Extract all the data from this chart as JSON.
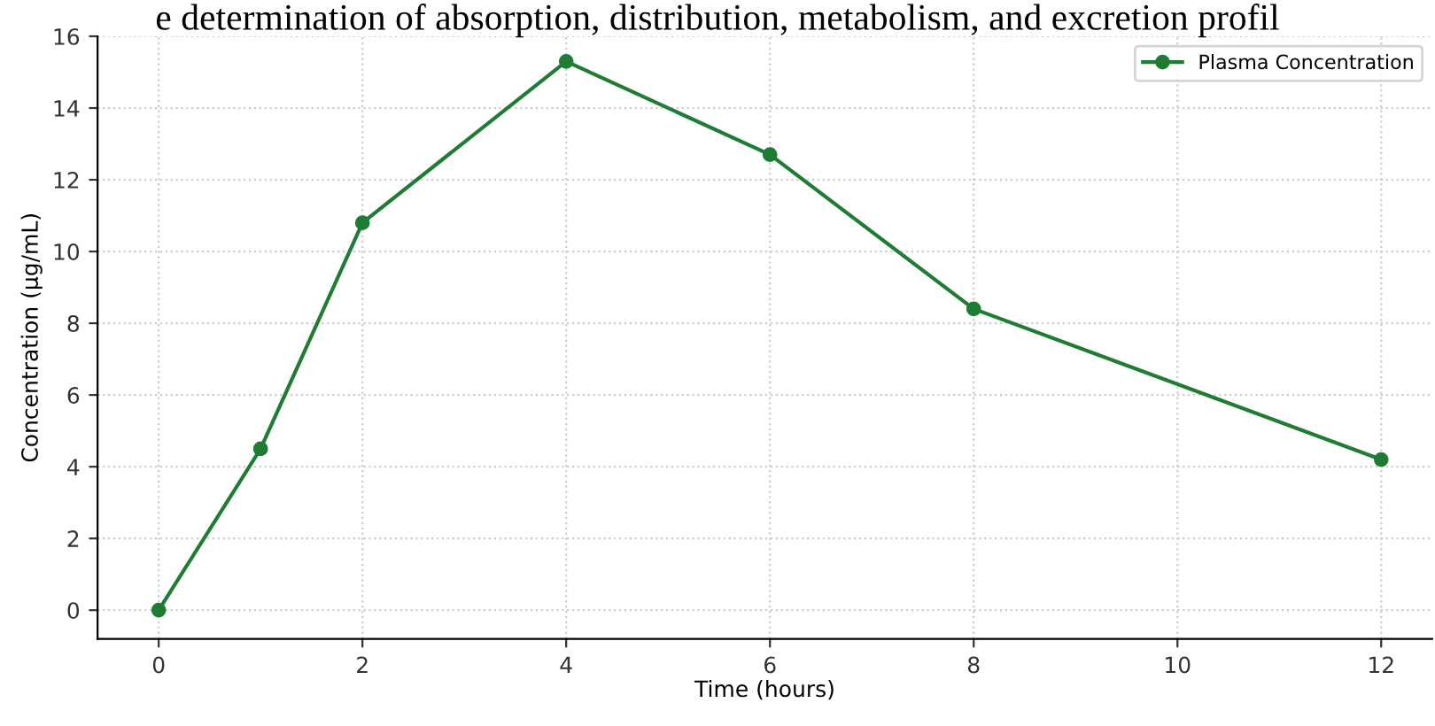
{
  "chart_data": {
    "type": "line",
    "title": "e determination of absorption, distribution, metabolism, and excretion profil",
    "xlabel": "Time (hours)",
    "ylabel": "Concentration (µg/mL)",
    "x": [
      0,
      1,
      2,
      4,
      6,
      8,
      12
    ],
    "series": [
      {
        "name": "Plasma Concentration",
        "color": "#1e7d32",
        "values": [
          0,
          4.5,
          10.8,
          15.3,
          12.7,
          8.4,
          4.2
        ]
      }
    ],
    "xlim": [
      -0.6,
      12.5
    ],
    "xticks": [
      0,
      2,
      4,
      6,
      8,
      10,
      12
    ],
    "ylim": [
      -0.8,
      16
    ],
    "yticks": [
      0,
      2,
      4,
      6,
      8,
      10,
      12,
      14,
      16
    ],
    "grid": true,
    "legend": "upper right",
    "marker": "circle",
    "line_style": "solid"
  }
}
